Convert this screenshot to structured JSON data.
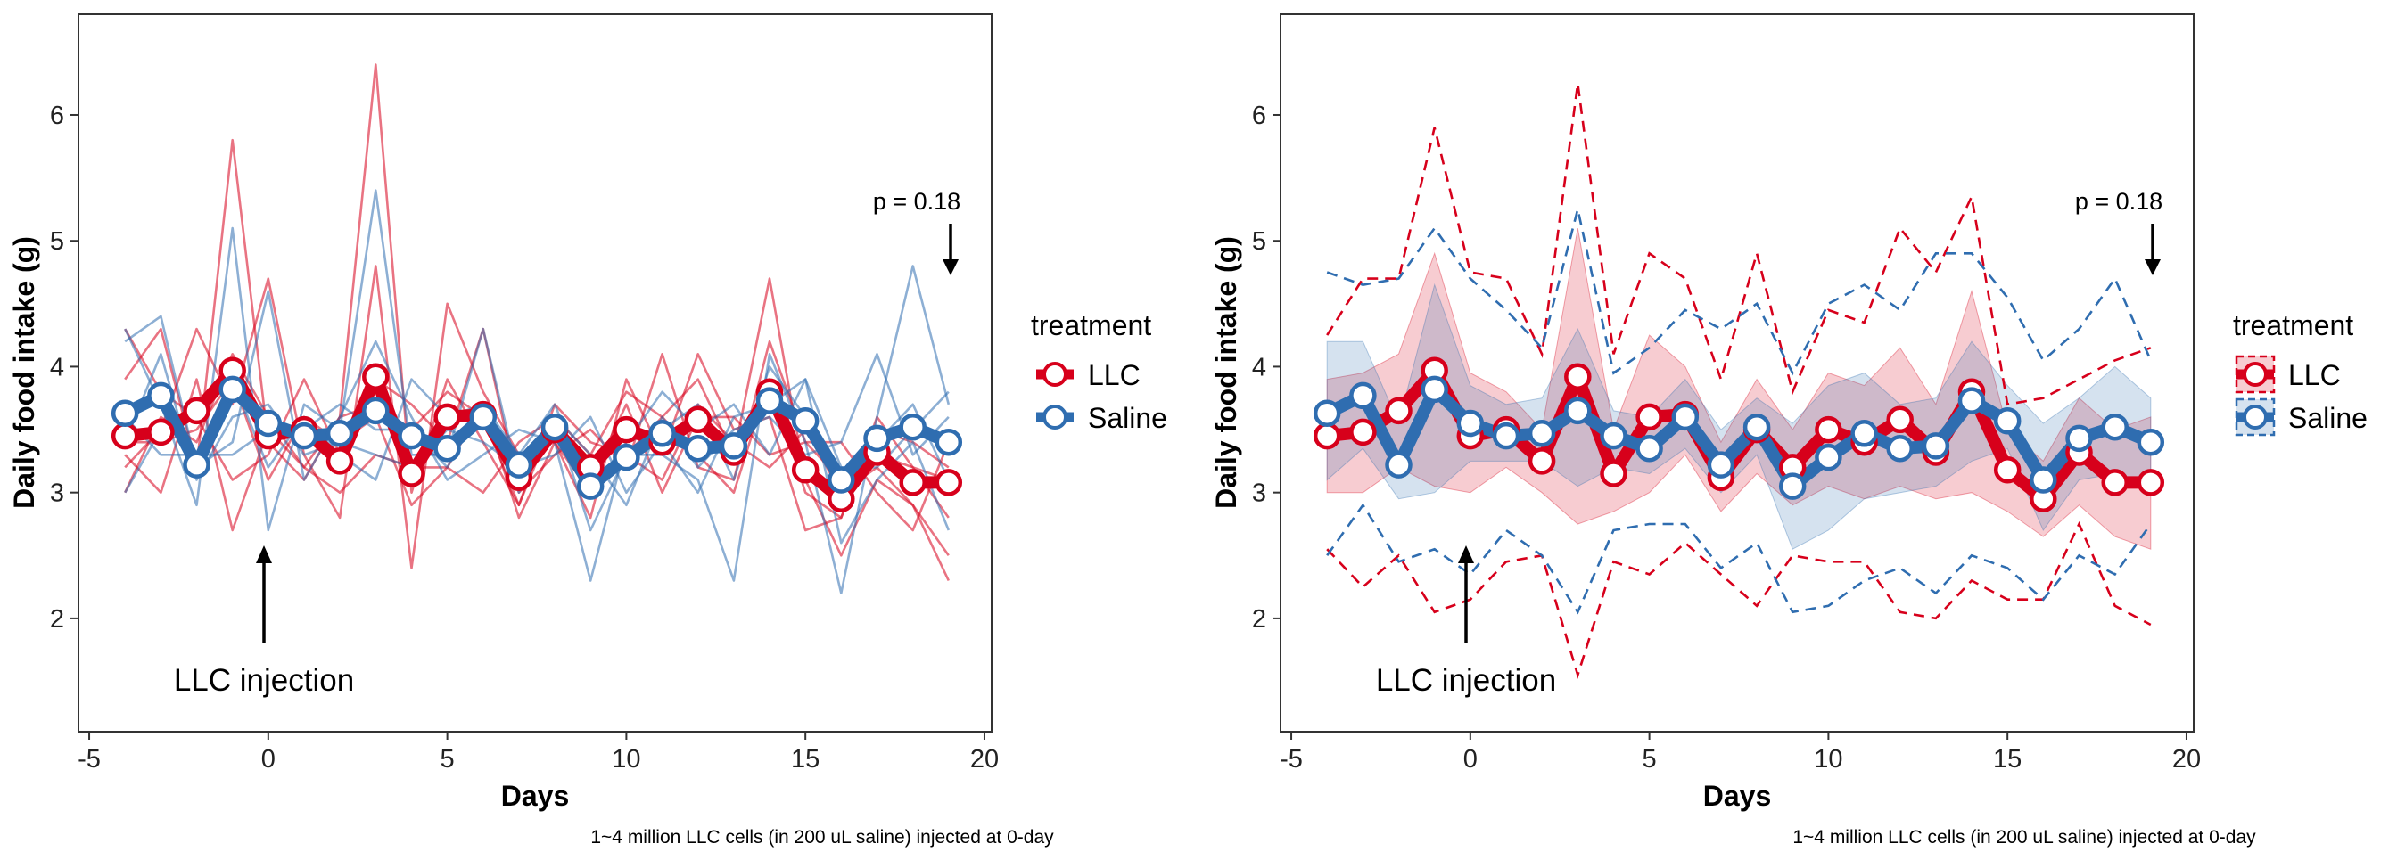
{
  "colors": {
    "llc": "#D7001B",
    "saline": "#2F6DB0",
    "frame": "#333333"
  },
  "footnote": "1~4 million LLC cells (in 200 uL saline) injected at 0-day",
  "chart_data": [
    {
      "type": "line",
      "panel": "individual",
      "xlabel": "Days",
      "ylabel": "Daily food intake (g)",
      "xlim": [
        -5.3,
        20.2
      ],
      "ylim": [
        1.1,
        6.8
      ],
      "x_ticks": [
        -5,
        0,
        5,
        10,
        15,
        20
      ],
      "y_ticks": [
        2,
        3,
        4,
        5,
        6
      ],
      "x_tick_labels": [
        "-5",
        "0",
        "5",
        "10",
        "15",
        "20"
      ],
      "y_tick_labels": [
        "2",
        "3",
        "4",
        "5",
        "6"
      ],
      "grid": false,
      "legend": {
        "title": "treatment",
        "position": "right",
        "entries": [
          "LLC",
          "Saline"
        ]
      },
      "annotations": {
        "injection": {
          "text": "LLC injection",
          "x": 0
        },
        "pvalue": {
          "text": "p = 0.18",
          "x": 19
        }
      },
      "x": [
        -4,
        -3,
        -2,
        -1,
        0,
        1,
        2,
        3,
        4,
        5,
        6,
        7,
        8,
        9,
        10,
        11,
        12,
        13,
        14,
        15,
        16,
        17,
        18,
        19
      ],
      "series": [
        {
          "name": "LLC",
          "values": [
            3.45,
            3.48,
            3.65,
            3.97,
            3.45,
            3.5,
            3.25,
            3.92,
            3.15,
            3.6,
            3.62,
            3.12,
            3.5,
            3.2,
            3.5,
            3.4,
            3.58,
            3.32,
            3.8,
            3.18,
            2.95,
            3.32,
            3.08,
            3.08
          ]
        },
        {
          "name": "Saline",
          "values": [
            3.63,
            3.77,
            3.22,
            3.82,
            3.55,
            3.45,
            3.47,
            3.65,
            3.45,
            3.35,
            3.6,
            3.22,
            3.52,
            3.05,
            3.28,
            3.47,
            3.35,
            3.37,
            3.73,
            3.57,
            3.1,
            3.43,
            3.52,
            3.4
          ]
        }
      ],
      "individual_lines": {
        "LLC": [
          [
            3.9,
            4.3,
            3.2,
            5.8,
            3.4,
            3.1,
            3.6,
            6.4,
            3.0,
            3.9,
            3.4,
            2.9,
            3.6,
            3.3,
            3.8,
            3.6,
            3.9,
            3.3,
            4.7,
            3.1,
            2.5,
            3.1,
            2.9,
            2.3
          ],
          [
            3.2,
            3.5,
            4.3,
            3.7,
            4.7,
            3.3,
            2.8,
            4.8,
            2.4,
            4.5,
            3.8,
            3.3,
            3.4,
            2.8,
            3.9,
            3.3,
            4.1,
            3.5,
            3.6,
            2.7,
            2.8,
            3.6,
            3.2,
            3.1
          ],
          [
            4.3,
            3.8,
            3.6,
            3.1,
            3.3,
            3.9,
            3.3,
            3.9,
            3.7,
            3.4,
            4.3,
            3.0,
            3.3,
            3.5,
            3.2,
            4.1,
            3.2,
            3.1,
            4.2,
            3.4,
            3.4,
            3.0,
            2.7,
            3.4
          ],
          [
            3.3,
            3.0,
            3.9,
            2.7,
            3.5,
            3.2,
            3.0,
            3.3,
            3.2,
            3.2,
            3.0,
            3.4,
            3.6,
            3.1,
            3.7,
            3.0,
            3.6,
            3.6,
            3.3,
            3.4,
            3.1,
            3.3,
            3.2,
            2.8
          ],
          [
            3.4,
            3.4,
            3.5,
            3.9,
            3.1,
            3.6,
            3.4,
            3.6,
            2.9,
            3.2,
            3.7,
            2.8,
            3.4,
            3.0,
            3.3,
            3.6,
            3.3,
            3.0,
            3.9,
            3.0,
            2.8,
            3.5,
            3.4,
            3.2
          ],
          [
            3.0,
            3.6,
            3.4,
            4.1,
            3.6,
            3.2,
            3.6,
            3.7,
            3.5,
            3.8,
            3.6,
            2.9,
            3.7,
            3.4,
            3.3,
            3.1,
            3.7,
            3.4,
            3.2,
            3.5,
            3.0,
            3.2,
            2.9,
            2.5
          ]
        ],
        "Saline": [
          [
            4.3,
            3.7,
            2.9,
            5.1,
            2.7,
            3.7,
            3.5,
            5.4,
            3.3,
            3.3,
            4.3,
            3.1,
            3.6,
            2.7,
            3.3,
            3.3,
            3.1,
            2.3,
            4.1,
            3.4,
            2.2,
            3.6,
            4.8,
            3.7
          ],
          [
            4.2,
            4.4,
            3.2,
            3.4,
            4.6,
            3.1,
            3.6,
            4.2,
            3.6,
            3.1,
            3.3,
            3.5,
            3.4,
            2.3,
            3.4,
            3.8,
            3.5,
            3.7,
            3.3,
            3.9,
            2.6,
            3.1,
            3.4,
            2.7
          ],
          [
            3.0,
            3.5,
            3.6,
            3.9,
            3.2,
            3.6,
            3.3,
            3.1,
            3.9,
            3.6,
            3.7,
            3.0,
            3.6,
            3.3,
            2.9,
            3.6,
            3.2,
            3.5,
            3.6,
            3.3,
            3.4,
            4.1,
            3.3,
            3.6
          ],
          [
            3.6,
            3.3,
            3.3,
            3.3,
            3.5,
            3.5,
            3.7,
            3.5,
            3.5,
            3.2,
            3.7,
            3.3,
            3.7,
            3.0,
            3.4,
            3.5,
            3.7,
            3.1,
            4.0,
            3.6,
            3.0,
            3.4,
            3.7,
            3.1
          ],
          [
            3.4,
            4.1,
            3.1,
            3.6,
            3.7,
            3.3,
            3.4,
            3.3,
            3.2,
            3.5,
            3.4,
            3.2,
            3.3,
            3.6,
            3.0,
            3.4,
            3.0,
            3.6,
            3.7,
            3.9,
            3.2,
            3.2,
            3.5,
            3.8
          ]
        ]
      }
    },
    {
      "type": "area",
      "panel": "ribbon",
      "xlabel": "Days",
      "ylabel": "Daily food intake (g)",
      "xlim": [
        -5.3,
        20.2
      ],
      "ylim": [
        1.1,
        6.8
      ],
      "x_ticks": [
        -5,
        0,
        5,
        10,
        15,
        20
      ],
      "y_ticks": [
        2,
        3,
        4,
        5,
        6
      ],
      "x_tick_labels": [
        "-5",
        "0",
        "5",
        "10",
        "15",
        "20"
      ],
      "y_tick_labels": [
        "2",
        "3",
        "4",
        "5",
        "6"
      ],
      "grid": false,
      "legend": {
        "title": "treatment",
        "position": "right",
        "entries": [
          "LLC",
          "Saline"
        ]
      },
      "annotations": {
        "injection": {
          "text": "LLC injection",
          "x": 0
        },
        "pvalue": {
          "text": "p = 0.18",
          "x": 19
        }
      },
      "x": [
        -4,
        -3,
        -2,
        -1,
        0,
        1,
        2,
        3,
        4,
        5,
        6,
        7,
        8,
        9,
        10,
        11,
        12,
        13,
        14,
        15,
        16,
        17,
        18,
        19
      ],
      "series": [
        {
          "name": "LLC",
          "values": [
            3.45,
            3.48,
            3.65,
            3.97,
            3.45,
            3.5,
            3.25,
            3.92,
            3.15,
            3.6,
            3.62,
            3.12,
            3.5,
            3.2,
            3.5,
            3.4,
            3.58,
            3.32,
            3.8,
            3.18,
            2.95,
            3.32,
            3.08,
            3.08
          ],
          "band_lower": [
            3.0,
            3.0,
            3.2,
            3.05,
            3.0,
            3.2,
            3.0,
            2.75,
            2.85,
            3.0,
            3.3,
            2.85,
            3.15,
            2.9,
            3.05,
            2.95,
            3.05,
            2.95,
            3.0,
            2.85,
            2.65,
            2.9,
            2.65,
            2.55
          ],
          "band_upper": [
            3.9,
            3.95,
            4.1,
            4.9,
            3.95,
            3.8,
            3.5,
            5.1,
            3.5,
            4.25,
            4.0,
            3.4,
            3.9,
            3.5,
            3.95,
            3.85,
            4.15,
            3.7,
            4.6,
            3.5,
            3.25,
            3.75,
            3.5,
            3.6
          ],
          "range_lower": [
            2.55,
            2.25,
            2.5,
            2.05,
            2.15,
            2.45,
            2.5,
            1.55,
            2.45,
            2.35,
            2.6,
            2.35,
            2.1,
            2.5,
            2.45,
            2.45,
            2.05,
            2.0,
            2.3,
            2.15,
            2.15,
            2.75,
            2.1,
            1.95
          ],
          "range_upper": [
            4.25,
            4.7,
            4.7,
            5.9,
            4.75,
            4.7,
            4.1,
            6.25,
            4.1,
            4.9,
            4.7,
            3.9,
            4.9,
            3.8,
            4.45,
            4.35,
            5.1,
            4.75,
            5.35,
            3.7,
            3.75,
            3.9,
            4.05,
            4.15
          ]
        },
        {
          "name": "Saline",
          "values": [
            3.63,
            3.77,
            3.22,
            3.82,
            3.55,
            3.45,
            3.47,
            3.65,
            3.45,
            3.35,
            3.6,
            3.22,
            3.52,
            3.05,
            3.28,
            3.47,
            3.35,
            3.37,
            3.73,
            3.57,
            3.1,
            3.43,
            3.52,
            3.4
          ],
          "band_lower": [
            3.1,
            3.35,
            2.95,
            3.0,
            3.25,
            3.25,
            3.25,
            3.05,
            3.2,
            3.15,
            3.35,
            3.0,
            3.3,
            2.55,
            2.7,
            2.95,
            3.0,
            3.05,
            3.25,
            3.35,
            2.7,
            3.1,
            3.15,
            3.05
          ],
          "band_upper": [
            4.2,
            4.2,
            3.55,
            4.65,
            3.85,
            3.7,
            3.75,
            4.3,
            3.65,
            3.6,
            3.9,
            3.5,
            3.75,
            3.55,
            3.85,
            3.95,
            3.7,
            3.75,
            4.2,
            3.85,
            3.55,
            3.75,
            4.0,
            3.75
          ],
          "range_lower": [
            2.5,
            2.9,
            2.45,
            2.55,
            2.35,
            2.7,
            2.5,
            2.05,
            2.7,
            2.75,
            2.75,
            2.4,
            2.6,
            2.05,
            2.1,
            2.3,
            2.4,
            2.2,
            2.5,
            2.4,
            2.15,
            2.5,
            2.35,
            2.75
          ],
          "range_upper": [
            4.75,
            4.65,
            4.7,
            5.1,
            4.7,
            4.45,
            4.15,
            5.25,
            3.95,
            4.15,
            4.45,
            4.3,
            4.5,
            3.95,
            4.5,
            4.65,
            4.45,
            4.9,
            4.9,
            4.55,
            4.05,
            4.3,
            4.7,
            4.05
          ]
        }
      ]
    }
  ]
}
